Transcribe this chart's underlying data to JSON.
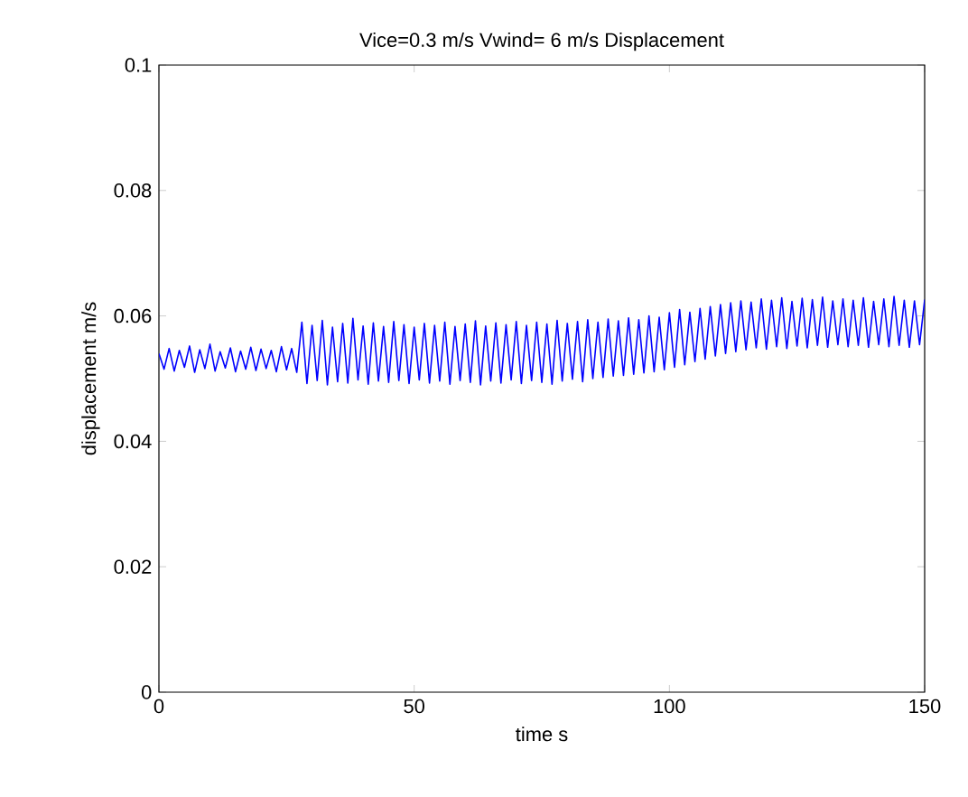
{
  "chart_data": {
    "type": "line",
    "title": "Vice=0.3 m/s  Vwind= 6 m/s Displacement",
    "xlabel": "time s",
    "ylabel": "displacement m/s",
    "color": "#0000ff",
    "xlim": [
      0,
      150
    ],
    "ylim": [
      0,
      0.1
    ],
    "xticks": [
      0,
      50,
      100,
      150
    ],
    "yticks": [
      0,
      0.02,
      0.04,
      0.06,
      0.08,
      0.1
    ],
    "x": [
      0,
      1,
      2,
      3,
      4,
      5,
      6,
      7,
      8,
      9,
      10,
      11,
      12,
      13,
      14,
      15,
      16,
      17,
      18,
      19,
      20,
      21,
      22,
      23,
      24,
      25,
      26,
      27,
      28,
      29,
      30,
      31,
      32,
      33,
      34,
      35,
      36,
      37,
      38,
      39,
      40,
      41,
      42,
      43,
      44,
      45,
      46,
      47,
      48,
      49,
      50,
      51,
      52,
      53,
      54,
      55,
      56,
      57,
      58,
      59,
      60,
      61,
      62,
      63,
      64,
      65,
      66,
      67,
      68,
      69,
      70,
      71,
      72,
      73,
      74,
      75,
      76,
      77,
      78,
      79,
      80,
      81,
      82,
      83,
      84,
      85,
      86,
      87,
      88,
      89,
      90,
      91,
      92,
      93,
      94,
      95,
      96,
      97,
      98,
      99,
      100,
      101,
      102,
      103,
      104,
      105,
      106,
      107,
      108,
      109,
      110,
      111,
      112,
      113,
      114,
      115,
      116,
      117,
      118,
      119,
      120,
      121,
      122,
      123,
      124,
      125,
      126,
      127,
      128,
      129,
      130,
      131,
      132,
      133,
      134,
      135,
      136,
      137,
      138,
      139,
      140,
      141,
      142,
      143,
      144,
      145,
      146,
      147,
      148,
      149,
      150
    ],
    "values": [
      0.054,
      0.0515,
      0.0548,
      0.0512,
      0.0545,
      0.0518,
      0.0552,
      0.051,
      0.0546,
      0.0516,
      0.0555,
      0.0512,
      0.0543,
      0.0517,
      0.0549,
      0.0511,
      0.0544,
      0.0515,
      0.055,
      0.0513,
      0.0547,
      0.0516,
      0.0545,
      0.0511,
      0.0551,
      0.0514,
      0.0548,
      0.051,
      0.059,
      0.0492,
      0.0585,
      0.0497,
      0.0593,
      0.049,
      0.0582,
      0.0495,
      0.0588,
      0.0493,
      0.0596,
      0.0498,
      0.0584,
      0.0491,
      0.0589,
      0.0496,
      0.0583,
      0.0494,
      0.0591,
      0.0497,
      0.0586,
      0.0492,
      0.0582,
      0.0498,
      0.0588,
      0.0493,
      0.0585,
      0.0496,
      0.059,
      0.0491,
      0.0583,
      0.0497,
      0.0587,
      0.0494,
      0.0592,
      0.049,
      0.0584,
      0.0496,
      0.0589,
      0.0493,
      0.0586,
      0.0498,
      0.0591,
      0.0492,
      0.0585,
      0.0497,
      0.059,
      0.0494,
      0.0587,
      0.0491,
      0.0593,
      0.0496,
      0.0588,
      0.0499,
      0.0591,
      0.0495,
      0.0594,
      0.05,
      0.059,
      0.0502,
      0.0595,
      0.0504,
      0.0592,
      0.0505,
      0.0597,
      0.0507,
      0.0594,
      0.0509,
      0.06,
      0.0511,
      0.0598,
      0.0514,
      0.0605,
      0.0518,
      0.061,
      0.0522,
      0.0606,
      0.0527,
      0.0612,
      0.0531,
      0.0615,
      0.0536,
      0.0618,
      0.054,
      0.0621,
      0.0543,
      0.0624,
      0.0546,
      0.0622,
      0.0549,
      0.0627,
      0.0547,
      0.0625,
      0.0551,
      0.0629,
      0.0548,
      0.0623,
      0.0552,
      0.0628,
      0.0549,
      0.0626,
      0.0553,
      0.063,
      0.055,
      0.0624,
      0.0554,
      0.0627,
      0.0551,
      0.0625,
      0.0553,
      0.0629,
      0.055,
      0.0623,
      0.0554,
      0.0627,
      0.0551,
      0.0631,
      0.0553,
      0.0625,
      0.055,
      0.0624,
      0.0554,
      0.0626
    ]
  }
}
